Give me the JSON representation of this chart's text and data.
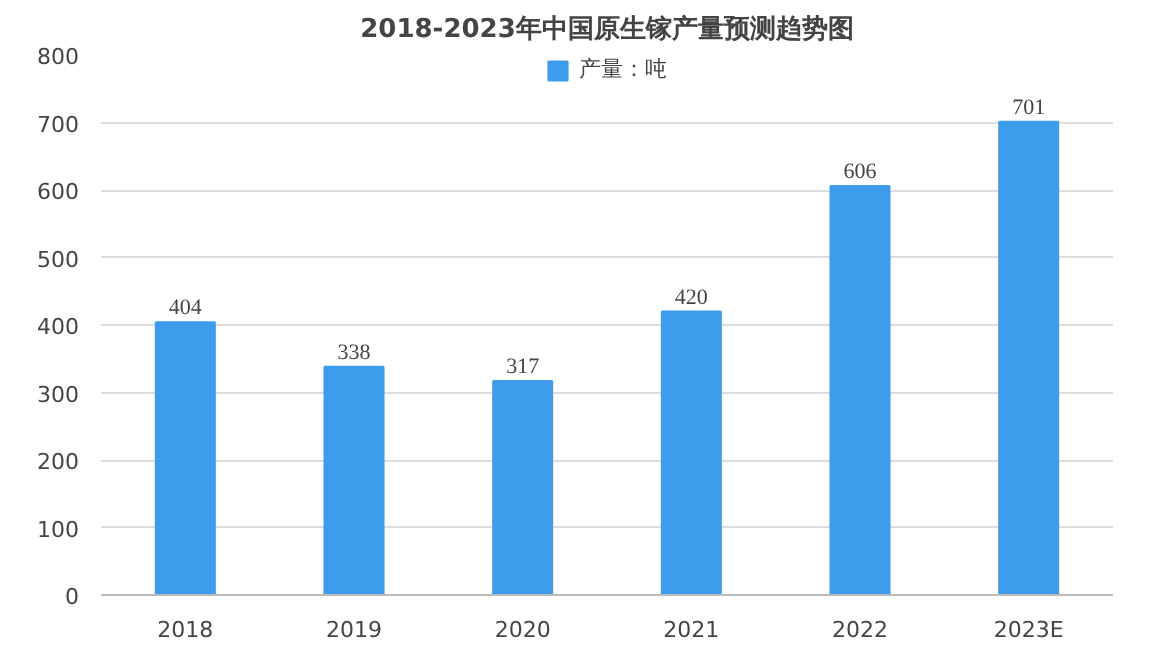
{
  "chart_data": {
    "type": "bar",
    "title": "2018-2023年中国原生镓产量预测趋势图",
    "categories": [
      "2018",
      "2019",
      "2020",
      "2021",
      "2022",
      "2023E"
    ],
    "series": [
      {
        "name": "产量：吨",
        "color": "#3d9cec",
        "values": [
          404,
          338,
          317,
          420,
          606,
          701
        ]
      }
    ],
    "ylim": [
      0,
      800
    ],
    "yticks": [
      0,
      100,
      200,
      300,
      400,
      500,
      600,
      700,
      800
    ],
    "grid": "y",
    "legend": "top",
    "data_labels": true
  }
}
